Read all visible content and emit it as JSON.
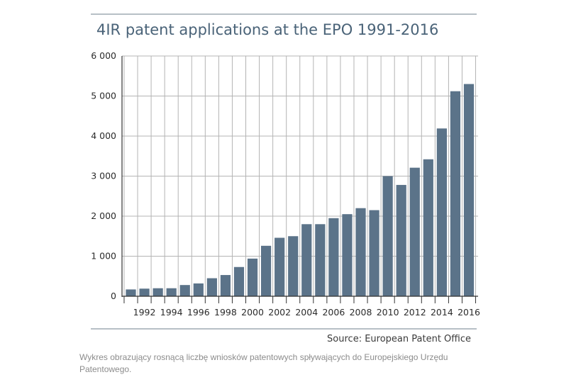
{
  "chart_data": {
    "type": "bar",
    "title": "4IR patent applications at the EPO 1991-2016",
    "source": "Source: European Patent Office",
    "x": [
      1991,
      1992,
      1993,
      1994,
      1995,
      1996,
      1997,
      1998,
      1999,
      2000,
      2001,
      2002,
      2003,
      2004,
      2005,
      2006,
      2007,
      2008,
      2009,
      2010,
      2011,
      2012,
      2013,
      2014,
      2015,
      2016
    ],
    "x_tick_labels": [
      "1992",
      "1994",
      "1996",
      "1998",
      "2000",
      "2002",
      "2004",
      "2006",
      "2008",
      "2010",
      "2012",
      "2014",
      "2016"
    ],
    "values": [
      170,
      190,
      200,
      200,
      280,
      320,
      450,
      530,
      730,
      940,
      1260,
      1460,
      1500,
      1800,
      1800,
      1950,
      2050,
      2200,
      2150,
      3000,
      2780,
      3210,
      3420,
      4190,
      5120,
      5300
    ],
    "ylim": [
      0,
      6000
    ],
    "y_ticks": [
      0,
      1000,
      2000,
      3000,
      4000,
      5000,
      6000
    ],
    "y_tick_labels": [
      "0",
      "1 000",
      "2 000",
      "3 000",
      "4 000",
      "5 000",
      "6 000"
    ],
    "grid": true,
    "bar_color": "#5b7389",
    "grid_color": "#b4b4b4",
    "title_color": "#4a6378"
  },
  "caption": "Wykres obrazujący rosnącą liczbę wniosków patentowych spływających do Europejskiego Urzędu Patentowego."
}
